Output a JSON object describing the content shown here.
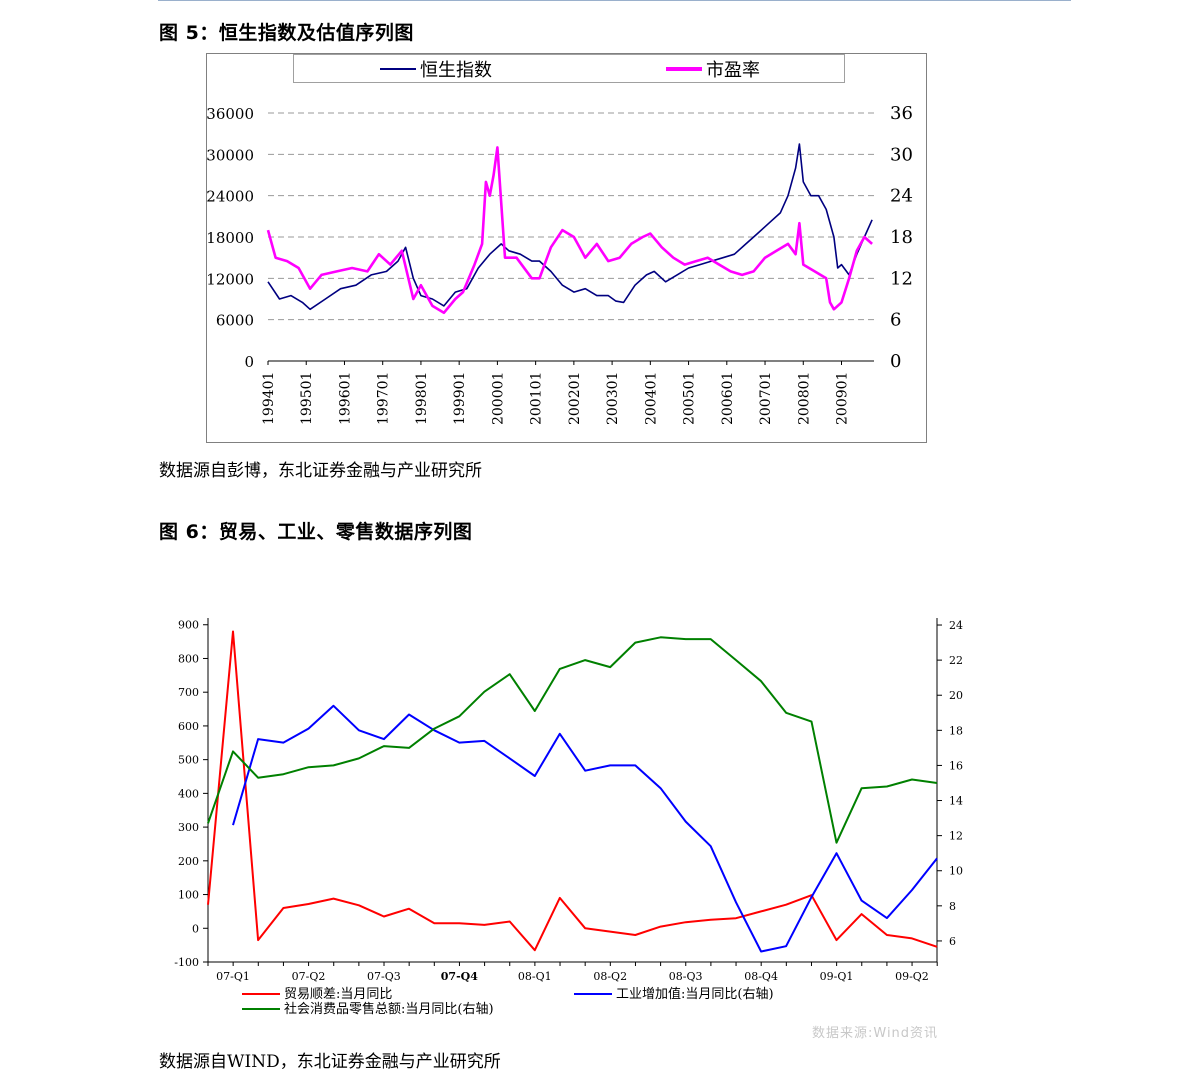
{
  "figure5": {
    "title": "图 5：恒生指数及估值序列图",
    "source": "数据源自彭博，东北证券金融与产业研究所"
  },
  "figure6": {
    "title": "图 6：贸易、工业、零售数据序列图",
    "source": "数据源自WIND，东北证券金融与产业研究所",
    "watermark": "数据来源:Wind资讯"
  },
  "chart_data": [
    {
      "type": "line",
      "legend_position": "top",
      "grid": true,
      "x_ticks": [
        "199401",
        "199501",
        "199601",
        "199701",
        "199801",
        "199901",
        "200001",
        "200101",
        "200201",
        "200301",
        "200401",
        "200501",
        "200601",
        "200701",
        "200801",
        "200901"
      ],
      "y_left": {
        "ticks": [
          0,
          6000,
          12000,
          18000,
          24000,
          30000,
          36000
        ],
        "ylim": [
          0,
          36000
        ]
      },
      "y_right": {
        "ticks": [
          0,
          6,
          12,
          18,
          24,
          30,
          36
        ],
        "ylim": [
          0,
          36
        ]
      },
      "series": [
        {
          "name": "恒生指数",
          "axis": "left",
          "color": "#000080",
          "x": [
            1994.0,
            1994.3,
            1994.6,
            1994.9,
            1995.1,
            1995.5,
            1995.9,
            1996.3,
            1996.7,
            1997.1,
            1997.4,
            1997.6,
            1997.8,
            1998.0,
            1998.3,
            1998.6,
            1998.9,
            1999.2,
            1999.5,
            1999.8,
            2000.1,
            2000.3,
            2000.6,
            2000.9,
            2001.1,
            2001.4,
            2001.7,
            2002.0,
            2002.3,
            2002.6,
            2002.9,
            2003.1,
            2003.3,
            2003.6,
            2003.9,
            2004.1,
            2004.4,
            2004.7,
            2005.0,
            2005.3,
            2005.6,
            2005.9,
            2006.2,
            2006.5,
            2006.8,
            2007.1,
            2007.4,
            2007.6,
            2007.8,
            2007.9,
            2008.0,
            2008.2,
            2008.4,
            2008.6,
            2008.8,
            2008.9,
            2009.0,
            2009.2,
            2009.4,
            2009.6,
            2009.8
          ],
          "y": [
            11500,
            9000,
            9500,
            8500,
            7500,
            9000,
            10500,
            11000,
            12500,
            13000,
            14500,
            16500,
            12000,
            9500,
            9000,
            8000,
            10000,
            10500,
            13500,
            15500,
            17000,
            16000,
            15500,
            14500,
            14500,
            13000,
            11000,
            10000,
            10500,
            9500,
            9500,
            8700,
            8500,
            11000,
            12500,
            13000,
            11500,
            12500,
            13500,
            14000,
            14500,
            15000,
            15500,
            17000,
            18500,
            20000,
            21500,
            24000,
            28000,
            31500,
            26000,
            24000,
            24000,
            22000,
            18000,
            13500,
            14000,
            12500,
            15500,
            18000,
            20500
          ]
        },
        {
          "name": "市盈率",
          "axis": "right",
          "color": "#ff00ff",
          "x": [
            1994.0,
            1994.2,
            1994.5,
            1994.8,
            1995.1,
            1995.4,
            1995.8,
            1996.2,
            1996.6,
            1996.9,
            1997.2,
            1997.5,
            1997.8,
            1998.0,
            1998.3,
            1998.6,
            1998.9,
            1999.1,
            1999.4,
            1999.6,
            1999.7,
            1999.8,
            1999.9,
            2000.0,
            2000.2,
            2000.5,
            2000.9,
            2001.1,
            2001.4,
            2001.7,
            2002.0,
            2002.3,
            2002.6,
            2002.9,
            2003.2,
            2003.5,
            2003.8,
            2004.0,
            2004.3,
            2004.6,
            2004.9,
            2005.2,
            2005.5,
            2005.8,
            2006.1,
            2006.4,
            2006.7,
            2007.0,
            2007.3,
            2007.6,
            2007.8,
            2007.9,
            2008.0,
            2008.3,
            2008.6,
            2008.7,
            2008.8,
            2009.0,
            2009.2,
            2009.4,
            2009.6,
            2009.8
          ],
          "y": [
            19,
            15,
            14.5,
            13.5,
            10.5,
            12.5,
            13,
            13.5,
            13,
            15.5,
            14,
            16,
            9,
            11,
            8,
            7,
            9,
            10,
            14,
            17,
            26,
            24,
            27,
            31,
            15,
            15,
            12,
            12,
            16.5,
            19,
            18,
            15,
            17,
            14.5,
            15,
            17,
            18,
            18.5,
            16.5,
            15,
            14,
            14.5,
            15,
            14,
            13,
            12.5,
            13,
            15,
            16,
            17,
            15.5,
            20,
            14,
            13,
            12,
            8.5,
            7.5,
            8.5,
            12,
            16,
            18,
            17
          ]
        }
      ]
    },
    {
      "type": "line",
      "legend_position": "bottom",
      "grid": false,
      "x_ticks": [
        "07-Q1",
        "07-Q2",
        "07-Q3",
        "07-Q4",
        "08-Q1",
        "08-Q2",
        "08-Q3",
        "08-Q4",
        "09-Q1",
        "09-Q2"
      ],
      "y_left": {
        "ticks": [
          -100,
          0,
          100,
          200,
          300,
          400,
          500,
          600,
          700,
          800,
          900
        ],
        "ylim": [
          -100,
          920
        ]
      },
      "y_right": {
        "ticks": [
          6,
          8,
          10,
          12,
          14,
          16,
          18,
          20,
          22,
          24
        ],
        "ylim": [
          4.8,
          24.4
        ]
      },
      "series": [
        {
          "name": "贸易顺差:当月同比",
          "axis": "left",
          "color": "#ff0000",
          "x": [
            2006.917,
            2007.0,
            2007.083,
            2007.167,
            2007.25,
            2007.333,
            2007.417,
            2007.5,
            2007.583,
            2007.667,
            2007.75,
            2007.833,
            2007.917,
            2008.0,
            2008.083,
            2008.167,
            2008.25,
            2008.333,
            2008.417,
            2008.5,
            2008.583,
            2008.667,
            2008.75,
            2008.833,
            2008.917,
            2009.0,
            2009.083,
            2009.167,
            2009.25,
            2009.333
          ],
          "y": [
            70,
            880,
            -35,
            60,
            72,
            88,
            68,
            35,
            58,
            15,
            15,
            10,
            20,
            -65,
            90,
            0,
            -10,
            -20,
            5,
            18,
            25,
            30,
            50,
            70,
            98,
            -35,
            42,
            -20,
            -30,
            -55
          ]
        },
        {
          "name": "工业增加值:当月同比(右轴)",
          "axis": "right",
          "color": "#0000ff",
          "x": [
            2007.0,
            2007.083,
            2007.167,
            2007.25,
            2007.333,
            2007.417,
            2007.5,
            2007.583,
            2007.667,
            2007.75,
            2007.833,
            2007.917,
            2008.0,
            2008.083,
            2008.167,
            2008.25,
            2008.333,
            2008.417,
            2008.5,
            2008.583,
            2008.667,
            2008.75,
            2008.833,
            2008.917,
            2009.0,
            2009.083,
            2009.167,
            2009.25,
            2009.333
          ],
          "y": [
            12.6,
            17.5,
            17.3,
            18.1,
            19.4,
            18.0,
            17.5,
            18.9,
            18.0,
            17.3,
            17.4,
            16.4,
            15.4,
            17.8,
            15.7,
            16.0,
            16.0,
            14.7,
            12.8,
            11.4,
            8.2,
            5.4,
            5.7,
            8.5,
            11.0,
            8.3,
            7.3,
            8.9,
            10.7
          ]
        },
        {
          "name": "社会消费品零售总额:当月同比(右轴)",
          "axis": "right",
          "color": "#008000",
          "x": [
            2006.917,
            2007.0,
            2007.083,
            2007.167,
            2007.25,
            2007.333,
            2007.417,
            2007.5,
            2007.583,
            2007.667,
            2007.75,
            2007.833,
            2007.917,
            2008.0,
            2008.083,
            2008.167,
            2008.25,
            2008.333,
            2008.417,
            2008.5,
            2008.583,
            2008.667,
            2008.75,
            2008.833,
            2008.917,
            2009.0,
            2009.083,
            2009.167,
            2009.25,
            2009.333
          ],
          "y": [
            12.7,
            16.8,
            15.3,
            15.5,
            15.9,
            16.0,
            16.4,
            17.1,
            17.0,
            18.1,
            18.8,
            20.2,
            21.2,
            19.1,
            21.5,
            22.0,
            21.6,
            23.0,
            23.3,
            23.2,
            23.2,
            22.0,
            20.8,
            19.0,
            18.5,
            11.6,
            14.7,
            14.8,
            15.2,
            15.0
          ]
        }
      ]
    }
  ]
}
